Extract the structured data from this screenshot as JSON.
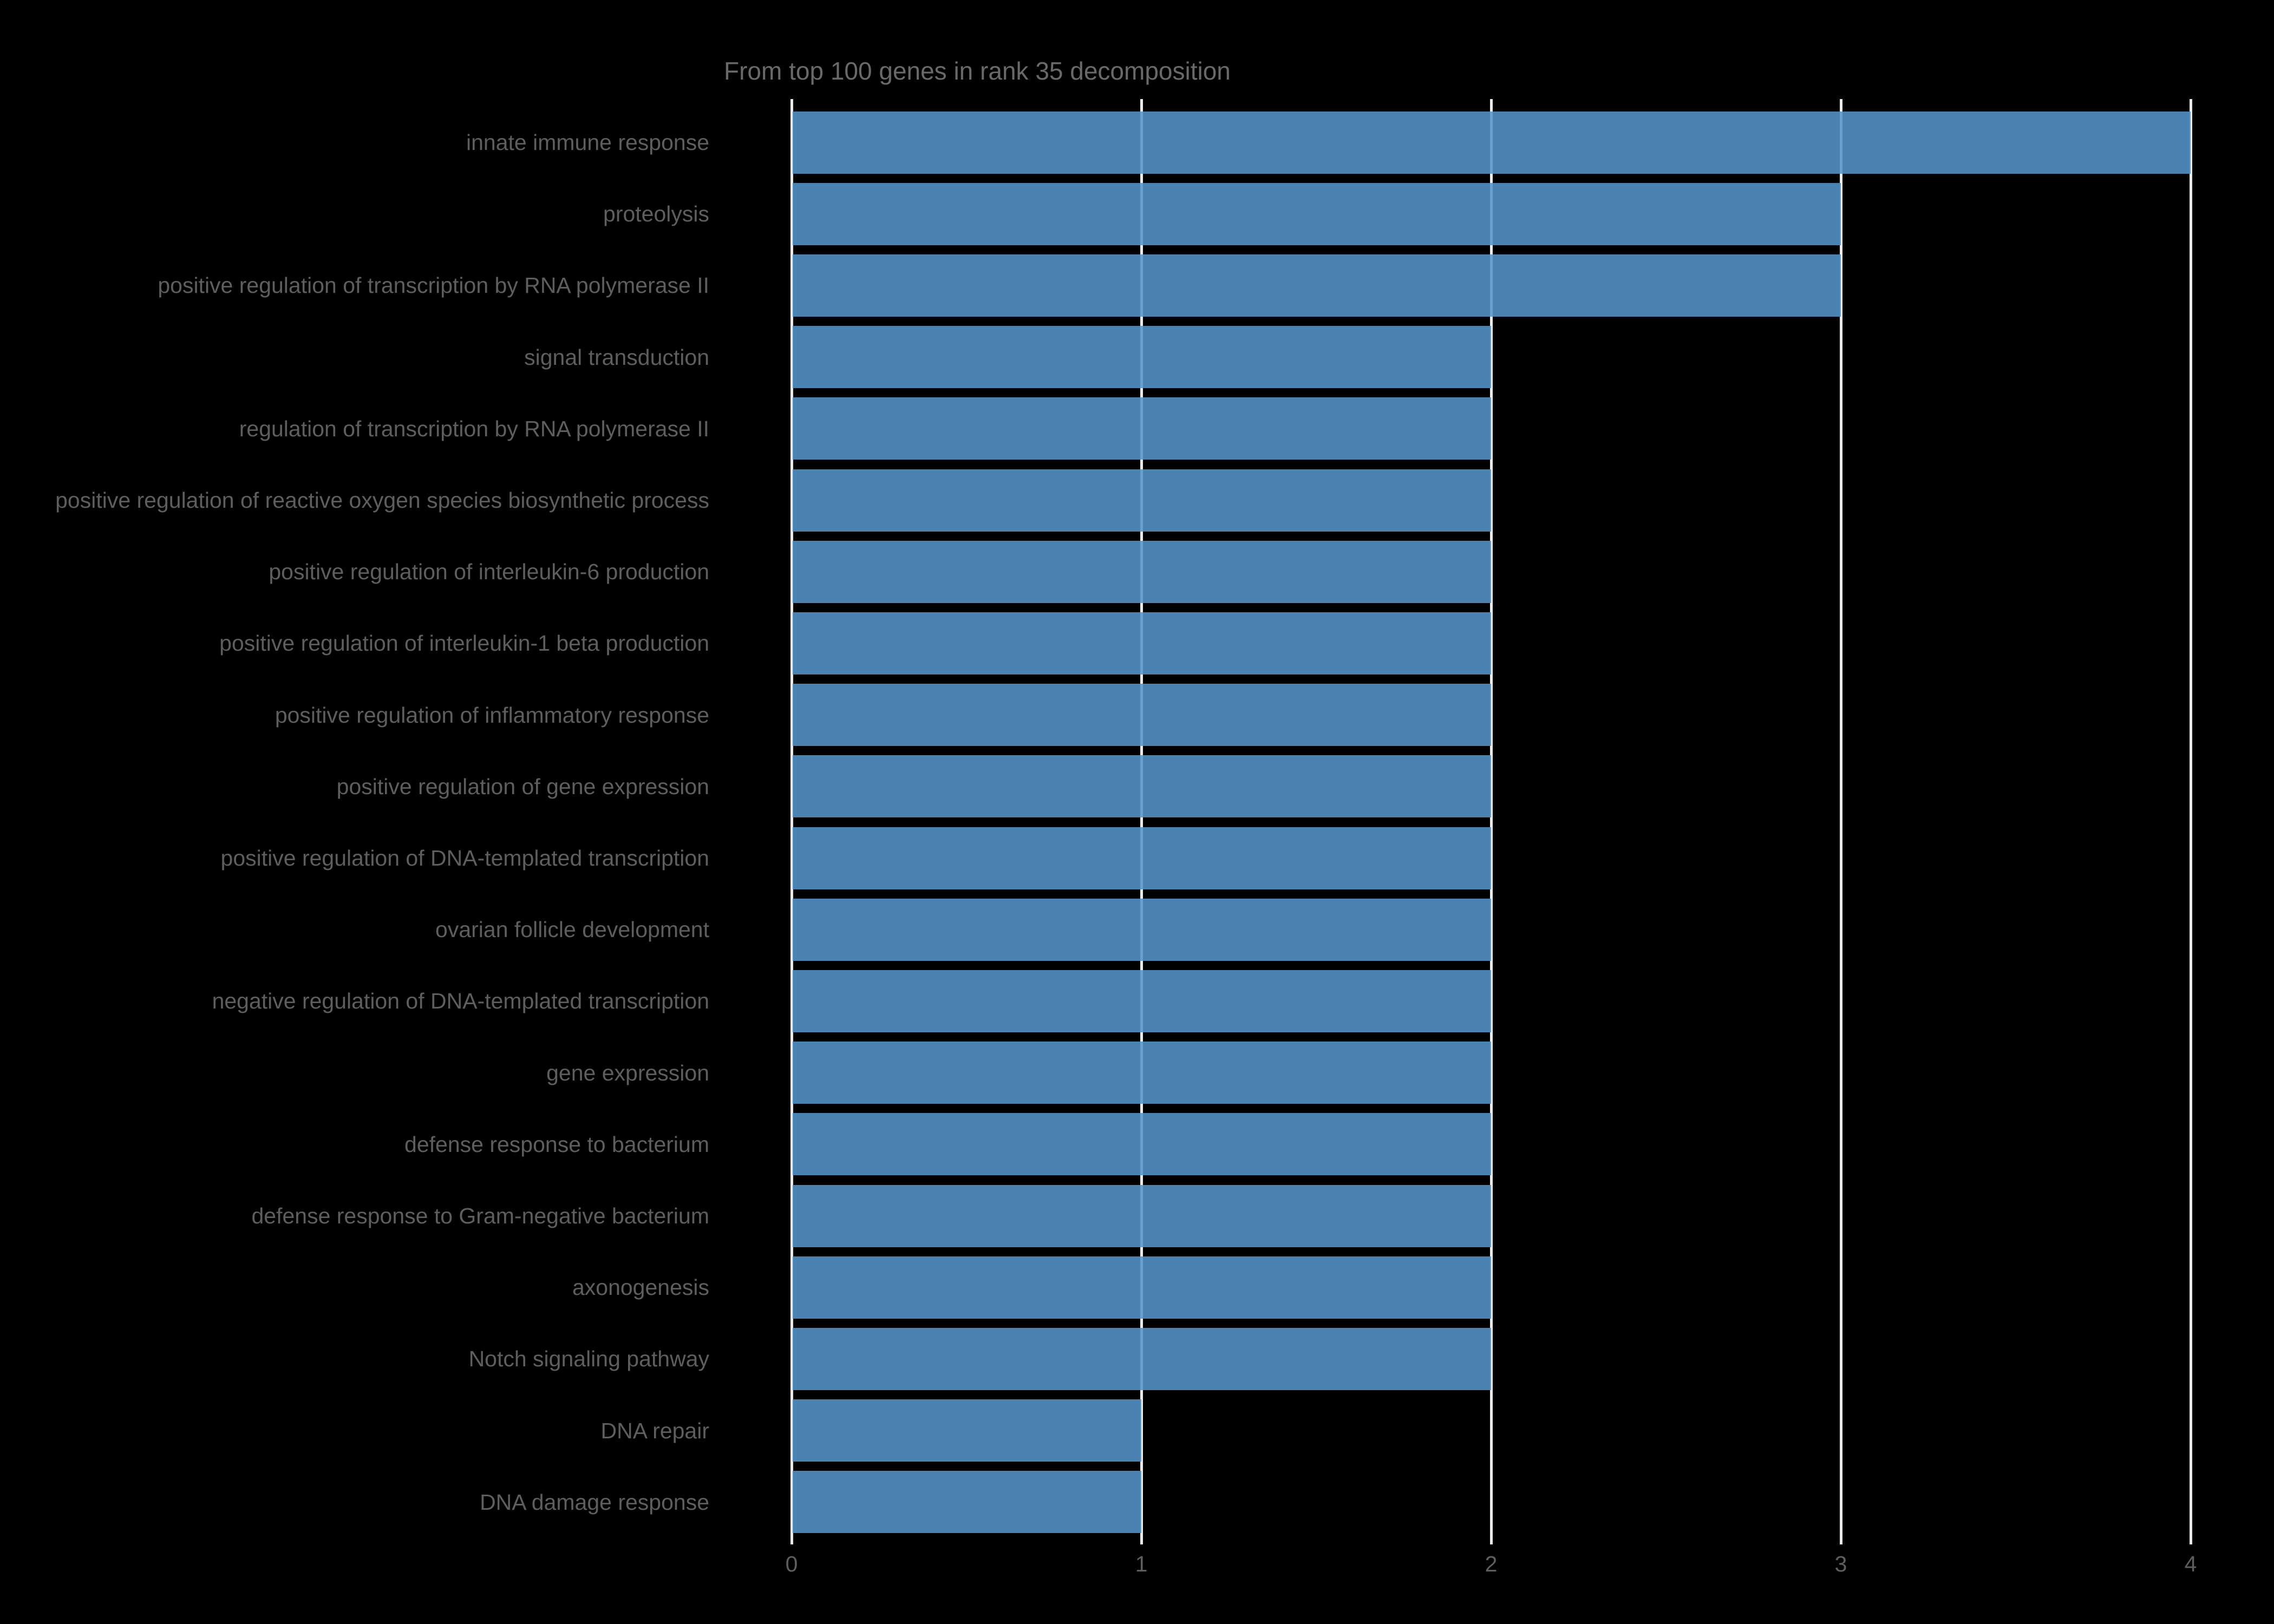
{
  "figure": {
    "title": "From top 100 genes in rank 35 decomposition"
  },
  "chart_data": {
    "type": "bar",
    "orientation": "horizontal",
    "title": "From top 100 genes in rank 35 decomposition",
    "categories": [
      "innate immune response",
      "proteolysis",
      "positive regulation of transcription by RNA polymerase II",
      "signal transduction",
      "regulation of transcription by RNA polymerase II",
      "positive regulation of reactive oxygen species biosynthetic process",
      "positive regulation of interleukin-6 production",
      "positive regulation of interleukin-1 beta production",
      "positive regulation of inflammatory response",
      "positive regulation of gene expression",
      "positive regulation of DNA-templated transcription",
      "ovarian follicle development",
      "negative regulation of DNA-templated transcription",
      "gene expression",
      "defense response to bacterium",
      "defense response to Gram-negative bacterium",
      "axonogenesis",
      "Notch signaling pathway",
      "DNA repair",
      "DNA damage response"
    ],
    "values": [
      4,
      3,
      3,
      2,
      2,
      2,
      2,
      2,
      2,
      2,
      2,
      2,
      2,
      2,
      2,
      2,
      2,
      2,
      1,
      1
    ],
    "xlabel": "",
    "ylabel": "",
    "xlim": [
      0,
      4
    ],
    "xticks": [
      0,
      1,
      2,
      3,
      4
    ],
    "grid": "vertical",
    "legend": "none",
    "colors": {
      "background": "#000000",
      "bar": "#4682B4",
      "bar_rgba": "rgba(84,148,203,0.88)",
      "gridline": "#eaeaea",
      "title_text": "#696969",
      "label_text": "#5e5e5e"
    }
  }
}
